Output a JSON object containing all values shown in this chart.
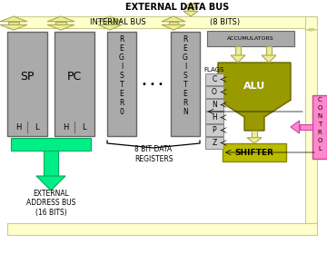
{
  "title": "EXTERNAL DATA BUS",
  "bg_color": "#ffffff",
  "internal_bus_label": "INTERNAL BUS",
  "bits_label": "(8 BITS)",
  "ext_addr_label": "EXTERNAL\nADDRESS BUS\n(16 BITS)",
  "data_reg_label": "8 BIT DATA\nREGISTERS",
  "flags_label": "FLAGS",
  "flag_cells": [
    "C",
    "O",
    "N",
    "H",
    "P",
    "Z"
  ],
  "bus_fill": "#ffffcc",
  "bus_edge": "#cccc88",
  "reg_fill": "#aaaaaa",
  "reg_edge": "#666666",
  "alu_fill": "#999900",
  "alu_edge": "#666600",
  "shifter_fill": "#bbbb00",
  "shifter_edge": "#888800",
  "accum_fill": "#aaaaaa",
  "accum_edge": "#666666",
  "flags_fill": "#cccccc",
  "flags_edge": "#888888",
  "control_fill": "#ff88cc",
  "control_edge": "#cc44aa",
  "green_fill": "#00ee88",
  "green_edge": "#00aa55",
  "arrow_fill": "#eeee99",
  "arrow_edge": "#aaaa55"
}
